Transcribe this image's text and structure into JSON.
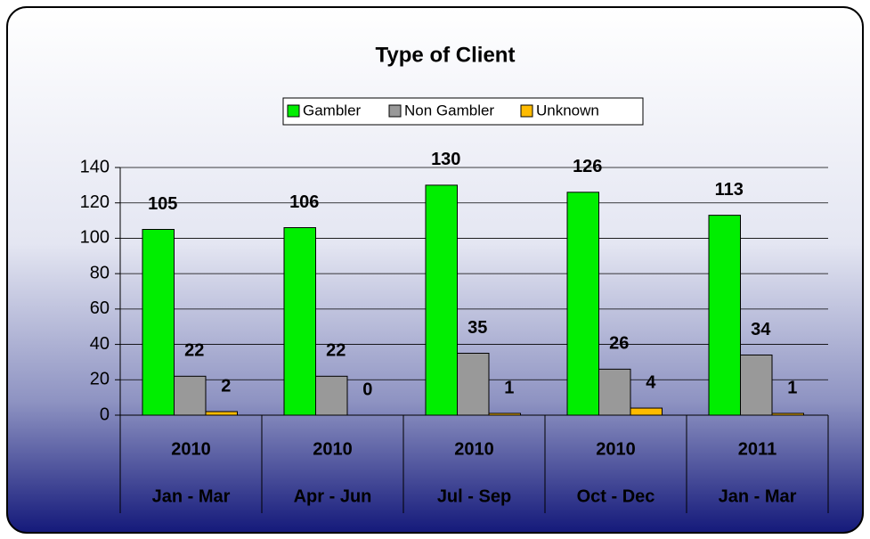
{
  "chart_data": {
    "type": "bar",
    "title": "Type of Client",
    "years": [
      "2010",
      "2010",
      "2010",
      "2010",
      "2011"
    ],
    "categories": [
      "Jan - Mar",
      "Apr - Jun",
      "Jul - Sep",
      "Oct - Dec",
      "Jan - Mar"
    ],
    "series": [
      {
        "name": "Gambler",
        "color": "#00ee00",
        "values": [
          105,
          106,
          130,
          126,
          113
        ]
      },
      {
        "name": "Non Gambler",
        "color": "#999999",
        "values": [
          22,
          22,
          35,
          26,
          34
        ]
      },
      {
        "name": "Unknown",
        "color": "#ffbb00",
        "values": [
          2,
          0,
          1,
          4,
          1
        ]
      }
    ],
    "ylim": [
      0,
      140
    ],
    "yticks": [
      0,
      20,
      40,
      60,
      80,
      100,
      120,
      140
    ],
    "grid": true,
    "legend": "top"
  }
}
